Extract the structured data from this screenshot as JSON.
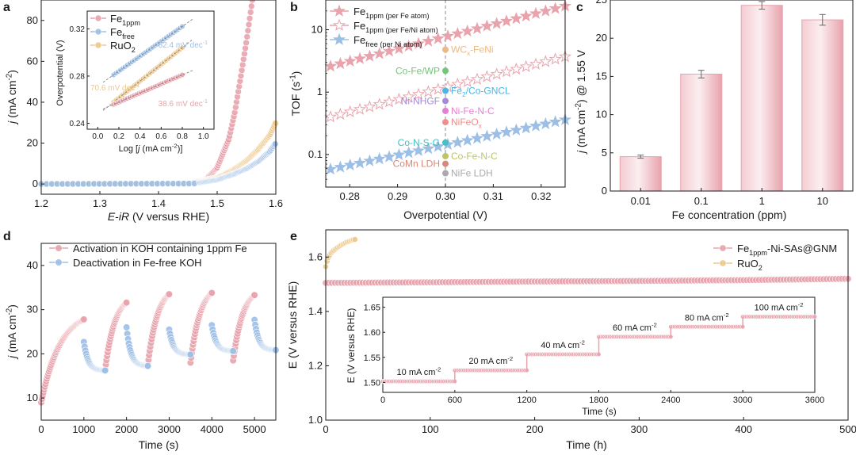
{
  "chart_data": [
    {
      "panel": "a",
      "type": "scatter",
      "xlabel": "E-iR (V versus RHE)",
      "ylabel": "j (mA cm-2)",
      "xlim": [
        1.2,
        1.6
      ],
      "ylim": [
        -5,
        90
      ],
      "xticks": [
        "1.2",
        "1.3",
        "1.4",
        "1.5",
        "1.6"
      ],
      "yticks": [
        "0",
        "20",
        "40",
        "60",
        "80"
      ],
      "colors": {
        "Fe1ppm": "#e8a3ad",
        "Fefree": "#9dbfe6",
        "RuO2": "#ecc98e"
      },
      "legend_entries": [
        {
          "base": "Fe",
          "sub": "1ppm"
        },
        {
          "base": "Fe",
          "sub": "free"
        },
        {
          "base": "RuO",
          "sub": "2"
        }
      ],
      "series": [
        {
          "key": "Fe1ppm",
          "onset": 1.47,
          "x": [
            1.2,
            1.45,
            1.48,
            1.5,
            1.52,
            1.53,
            1.54,
            1.55,
            1.56
          ],
          "y": [
            0,
            0.3,
            2,
            8,
            22,
            35,
            52,
            70,
            90
          ]
        },
        {
          "key": "RuO2",
          "onset": 1.46,
          "x": [
            1.2,
            1.45,
            1.5,
            1.53,
            1.55,
            1.57,
            1.59,
            1.6
          ],
          "y": [
            0,
            0.3,
            3,
            7.5,
            11.5,
            17,
            24,
            30
          ]
        },
        {
          "key": "Fefree",
          "onset": 1.47,
          "x": [
            1.2,
            1.46,
            1.5,
            1.53,
            1.55,
            1.57,
            1.59,
            1.6
          ],
          "y": [
            0,
            0.2,
            2,
            5,
            7.5,
            11,
            16,
            20
          ]
        }
      ],
      "inset": {
        "xlabel": "Log [j (mA cm-2)]",
        "ylabel": "Overpotential (V)",
        "xlim": [
          -0.1,
          1.1
        ],
        "ylim": [
          0.235,
          0.335
        ],
        "xticks": [
          "0.0",
          "0.2",
          "0.4",
          "0.6",
          "0.8",
          "1.0"
        ],
        "yticks": [
          "0.24",
          "0.28",
          "0.32"
        ],
        "annotations": [
          "62.4 mV dec-1",
          "70.6 mV dec-1",
          "38.6 mV dec-1"
        ],
        "series": [
          {
            "key": "Fefree",
            "x": [
              0.15,
              0.8
            ],
            "y": [
              0.281,
              0.322
            ]
          },
          {
            "key": "RuO2",
            "x": [
              0.15,
              0.8
            ],
            "y": [
              0.258,
              0.304
            ]
          },
          {
            "key": "Fe1ppm",
            "x": [
              0.15,
              0.8
            ],
            "y": [
              0.256,
              0.281
            ]
          }
        ]
      }
    },
    {
      "panel": "b",
      "type": "scatter",
      "xlabel": "Overpotential (V)",
      "ylabel": "TOF (s-1)",
      "xlim": [
        0.275,
        0.325
      ],
      "ylim_log": [
        0.03,
        30
      ],
      "xticks": [
        "0.28",
        "0.29",
        "0.30",
        "0.31",
        "0.32"
      ],
      "yticks": [
        "0.1",
        "1",
        "10"
      ],
      "legend_entries": [
        {
          "base": "Fe",
          "sub": "1ppm (per Fe atom)"
        },
        {
          "base": "Fe",
          "sub": "1ppm (per Fe/Ni atom)"
        },
        {
          "base": "Fe",
          "sub": "free (per Ni atom)"
        }
      ],
      "series": [
        {
          "key": "per_fe",
          "x_start": 0.276,
          "x_end": 0.325,
          "y_start": 2.6,
          "y_end": 24
        },
        {
          "key": "per_feni",
          "x_start": 0.276,
          "x_end": 0.325,
          "y_start": 0.4,
          "y_end": 3.7
        },
        {
          "key": "per_ni",
          "x_start": 0.276,
          "x_end": 0.325,
          "y_start": 0.058,
          "y_end": 0.36
        }
      ],
      "reference_points": [
        {
          "label": "WCx-FeNi",
          "y": 4.8,
          "color": "#f0b880",
          "side": "right"
        },
        {
          "label": "Co-Fe/WP",
          "y": 2.2,
          "color": "#74c47a",
          "side": "left"
        },
        {
          "label": "Fe2/Co-GNCL",
          "y": 1.05,
          "color": "#48b6e6",
          "side": "right"
        },
        {
          "label": "Ni-NHGF",
          "y": 0.72,
          "color": "#a48ad9",
          "side": "left"
        },
        {
          "label": "Ni-Fe-N-C",
          "y": 0.5,
          "color": "#e57fd0",
          "side": "right"
        },
        {
          "label": "NiFeOx",
          "y": 0.33,
          "color": "#f08d8d",
          "side": "right"
        },
        {
          "label": "Co-N-S-G",
          "y": 0.155,
          "color": "#46c0c0",
          "side": "left"
        },
        {
          "label": "Co-Fe-N-C",
          "y": 0.094,
          "color": "#bcc566",
          "side": "right"
        },
        {
          "label": "CoMn LDH",
          "y": 0.071,
          "color": "#d8887a",
          "side": "left"
        },
        {
          "label": "NiFe LDH",
          "y": 0.05,
          "color": "#aaaaaa",
          "side": "right"
        }
      ]
    },
    {
      "panel": "c",
      "type": "bar",
      "xlabel": "Fe concentration (ppm)",
      "ylabel": "j (mA cm-2) @ 1.55 V",
      "ylim": [
        0,
        25
      ],
      "yticks": [
        "0",
        "5",
        "10",
        "15",
        "20",
        "25"
      ],
      "categories": [
        "0.01",
        "0.1",
        "1",
        "10"
      ],
      "values": [
        4.5,
        15.3,
        24.3,
        22.4
      ],
      "errors": [
        0.2,
        0.5,
        0.5,
        0.7
      ],
      "color": "#e8a3ad"
    },
    {
      "panel": "d",
      "type": "scatter",
      "xlabel": "Time (s)",
      "ylabel": "j (mA cm-2)",
      "xlim": [
        0,
        5500
      ],
      "ylim": [
        5,
        45
      ],
      "xticks": [
        "0",
        "1000",
        "2000",
        "3000",
        "4000",
        "5000"
      ],
      "yticks": [
        "10",
        "20",
        "30",
        "40"
      ],
      "legend_entries": [
        "Activation in KOH containing 1ppm Fe",
        "Deactivation in Fe-free KOH"
      ],
      "activation_segments": [
        {
          "t0": 0,
          "t1": 1000,
          "j0": 9,
          "j1": 27.8
        },
        {
          "t0": 1500,
          "t1": 2000,
          "j0": 16.5,
          "j1": 31.6
        },
        {
          "t0": 2500,
          "t1": 3000,
          "j0": 17.5,
          "j1": 33.5
        },
        {
          "t0": 3500,
          "t1": 4000,
          "j0": 18,
          "j1": 33.8
        },
        {
          "t0": 4500,
          "t1": 5000,
          "j0": 18.5,
          "j1": 33.3
        }
      ],
      "deactivation_segments": [
        {
          "t0": 1000,
          "t1": 1500,
          "j0": 22.7,
          "j1": 16.2
        },
        {
          "t0": 2000,
          "t1": 2500,
          "j0": 26,
          "j1": 17.2
        },
        {
          "t0": 3000,
          "t1": 3500,
          "j0": 25.5,
          "j1": 19.8
        },
        {
          "t0": 4000,
          "t1": 4500,
          "j0": 26.5,
          "j1": 20.6
        },
        {
          "t0": 5000,
          "t1": 5500,
          "j0": 27.7,
          "j1": 20.8
        }
      ]
    },
    {
      "panel": "e",
      "type": "scatter",
      "xlabel": "Time (h)",
      "ylabel": "E (V versus RHE)",
      "xlim": [
        0,
        500
      ],
      "ylim": [
        1.0,
        1.7
      ],
      "xticks": [
        "0",
        "100",
        "200",
        "300",
        "400",
        "500"
      ],
      "yticks": [
        "1.0",
        "1.2",
        "1.4",
        "1.6"
      ],
      "legend_entries": [
        {
          "base": "Fe",
          "sub": "1ppm",
          "rest": "-Ni-SAs@GNM"
        },
        {
          "base": "RuO",
          "sub": "2",
          "rest": ""
        }
      ],
      "series": [
        {
          "key": "Fe1ppm",
          "x": [
            0,
            100,
            200,
            300,
            400,
            500
          ],
          "y": [
            1.505,
            1.507,
            1.51,
            1.512,
            1.515,
            1.52
          ]
        },
        {
          "key": "RuO2",
          "x": [
            0,
            2,
            5,
            10,
            15,
            20,
            25,
            28
          ],
          "y": [
            1.565,
            1.595,
            1.615,
            1.632,
            1.645,
            1.655,
            1.662,
            1.665
          ]
        }
      ],
      "inset": {
        "xlabel": "Time (s)",
        "ylabel": "E (V versus RHE)",
        "xlim": [
          0,
          3600
        ],
        "ylim": [
          1.48,
          1.67
        ],
        "xticks": [
          "0",
          "600",
          "1200",
          "1800",
          "2400",
          "3000",
          "3600"
        ],
        "yticks": [
          "1.50",
          "1.55",
          "1.60",
          "1.65"
        ],
        "steps": [
          {
            "label": "10 mA cm-2",
            "t0": 0,
            "t1": 600,
            "E": 1.502
          },
          {
            "label": "20 mA cm-2",
            "t0": 600,
            "t1": 1200,
            "E": 1.524
          },
          {
            "label": "40 mA cm-2",
            "t0": 1200,
            "t1": 1800,
            "E": 1.556
          },
          {
            "label": "60 mA cm-2",
            "t0": 1800,
            "t1": 2400,
            "E": 1.591
          },
          {
            "label": "80 mA cm-2",
            "t0": 2400,
            "t1": 3000,
            "E": 1.611
          },
          {
            "label": "100 mA cm-2",
            "t0": 3000,
            "t1": 3600,
            "E": 1.631
          }
        ]
      }
    }
  ],
  "panels": {
    "a": "a",
    "b": "b",
    "c": "c",
    "d": "d",
    "e": "e"
  }
}
